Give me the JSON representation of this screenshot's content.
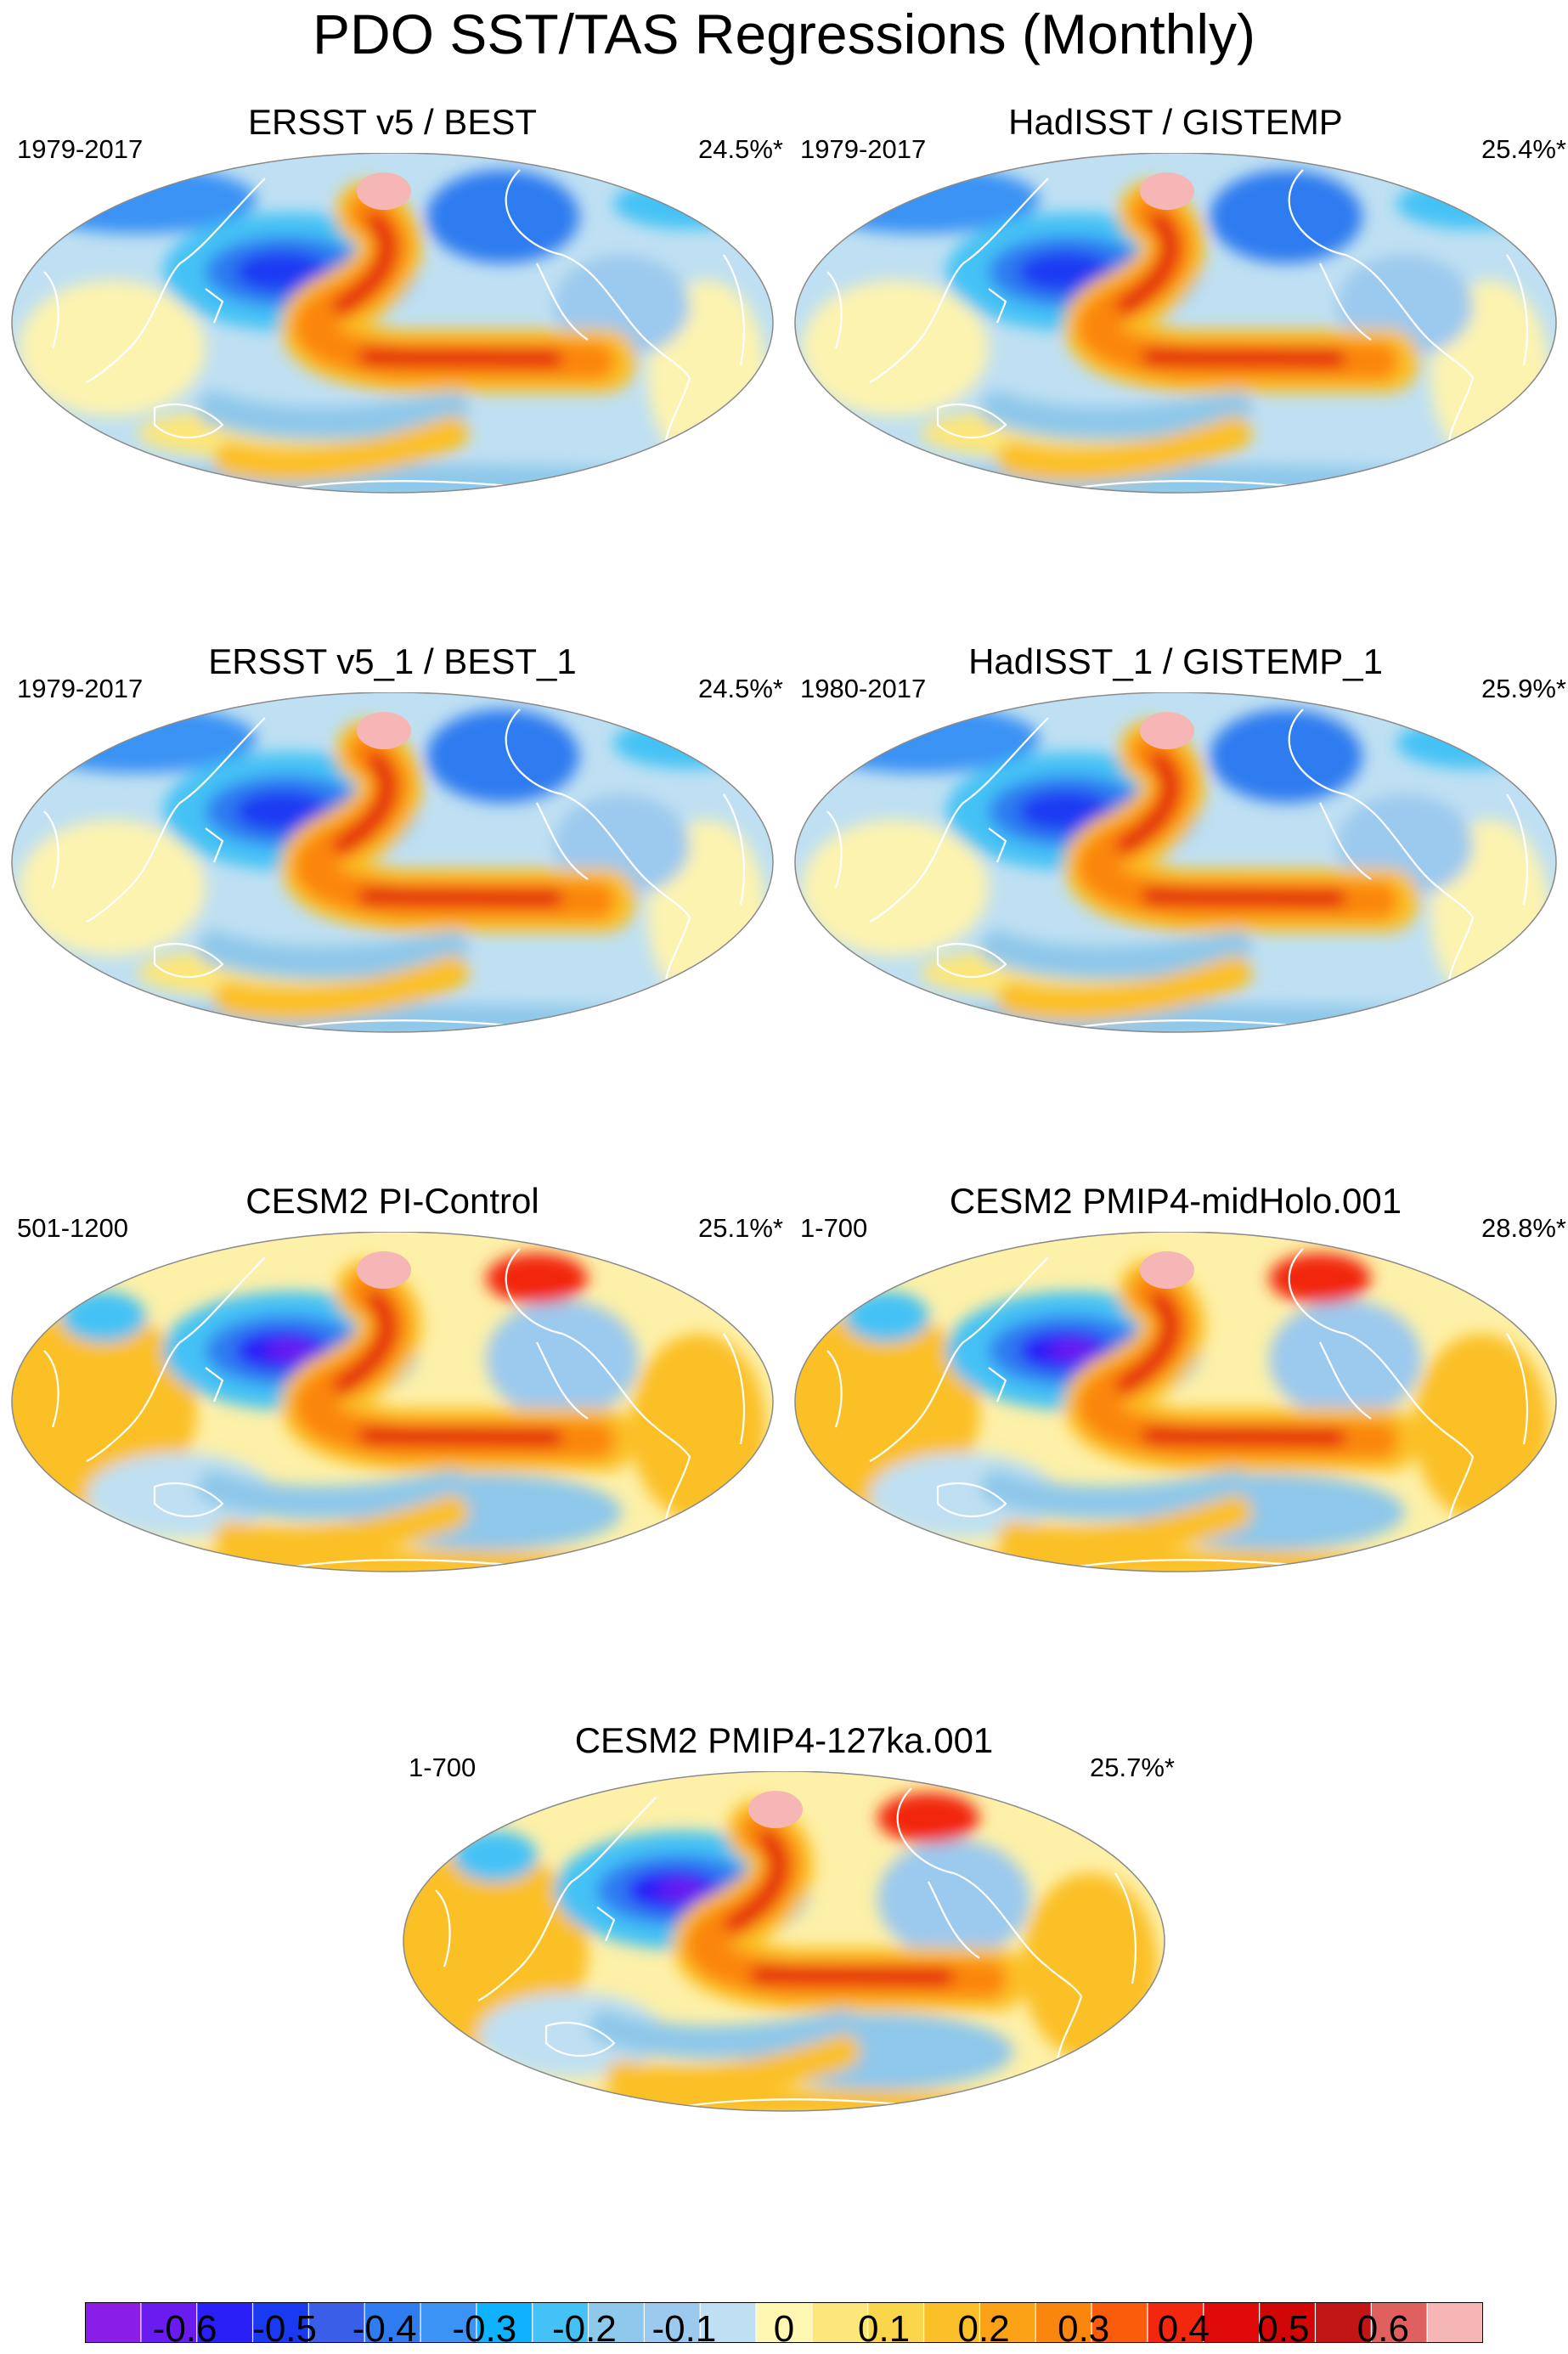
{
  "figure_title": "PDO SST/TAS Regressions (Monthly)",
  "panels": [
    {
      "title": "ERSST v5 / BEST",
      "period": "1979-2017",
      "variance": "24.5%*"
    },
    {
      "title": "HadISST / GISTEMP",
      "period": "1979-2017",
      "variance": "25.4%*"
    },
    {
      "title": "ERSST v5_1 / BEST_1",
      "period": "1979-2017",
      "variance": "24.5%*"
    },
    {
      "title": "HadISST_1 / GISTEMP_1",
      "period": "1980-2017",
      "variance": "25.9%*"
    },
    {
      "title": "CESM2 PI-Control",
      "period": "501-1200",
      "variance": "25.1%*"
    },
    {
      "title": "CESM2 PMIP4-midHolo.001",
      "period": "1-700",
      "variance": "28.8%*"
    },
    {
      "title": "CESM2 PMIP4-127ka.001",
      "period": "1-700",
      "variance": "25.7%*"
    }
  ],
  "colorbar": {
    "colors": [
      "#8b1ee6",
      "#6a1cf0",
      "#2b1ff7",
      "#1a3af2",
      "#3b5ee8",
      "#2f7cf0",
      "#3a93f5",
      "#0fb2ff",
      "#45c2f5",
      "#8ec8ea",
      "#9cc9ee",
      "#bfe0f2",
      "#fff7b2",
      "#fde67a",
      "#fbd54a",
      "#fbc028",
      "#fba217",
      "#fb860e",
      "#fb5c0a",
      "#f2270e",
      "#e10a0a",
      "#d20606",
      "#c21515",
      "#e06060",
      "#f6b6b6"
    ],
    "tick_labels": [
      "-0.6",
      "-0.5",
      "-0.4",
      "-0.3",
      "-0.2",
      "-0.1",
      "0",
      "0.1",
      "0.2",
      "0.3",
      "0.4",
      "0.5",
      "0.6"
    ],
    "tick_values": [
      -0.6,
      -0.5,
      -0.4,
      -0.3,
      -0.2,
      -0.1,
      0,
      0.1,
      0.2,
      0.3,
      0.4,
      0.5,
      0.6
    ],
    "range": [
      -0.7,
      0.7
    ]
  },
  "chart_data": {
    "type": "heatmap",
    "title": "PDO SST/TAS Regressions (Monthly)",
    "projection": "Robinson, Pacific-centered",
    "contour_levels": [
      -0.6,
      -0.55,
      -0.5,
      -0.45,
      -0.4,
      -0.35,
      -0.3,
      -0.25,
      -0.2,
      -0.15,
      -0.1,
      -0.05,
      0,
      0.05,
      0.1,
      0.15,
      0.2,
      0.25,
      0.3,
      0.35,
      0.4,
      0.45,
      0.5,
      0.55,
      0.6
    ],
    "pattern": "warm eastern/tropical Pacific horseshoe, cold central North Pacific"
  }
}
